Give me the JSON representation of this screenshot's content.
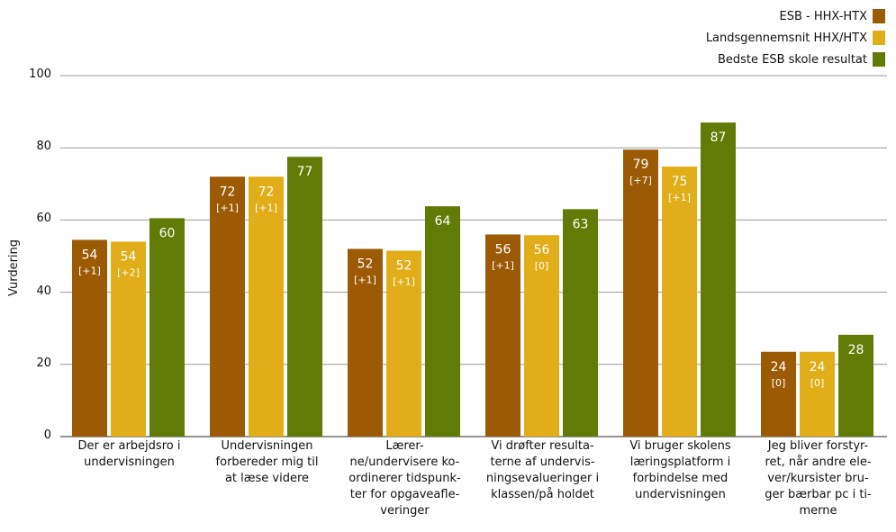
{
  "chart_data": {
    "type": "bar",
    "ylabel": "Vurdering",
    "ylim": [
      0,
      100
    ],
    "yticks": [
      0,
      20,
      40,
      60,
      80,
      100
    ],
    "grid": true,
    "legend_position": "top-right",
    "categories": [
      "Der er arbejdsro i\nundervisningen",
      "Undervisningen\nforbereder mig til\nat læse videre",
      "Lærer-\nne/undervisere ko-\nordinerer tidspunk-\nter for opgaveafle-\nveringer",
      "Vi drøfter resulta-\nterne af undervis-\nningsevalueringer i\nklassen/på holdet",
      "Vi bruger skolens\nlæringsplatform  i\nforbindelse med\nundervisningen",
      "Jeg bliver forstyr-\nret, når andre ele-\nver/kursister bru-\nger bærbar pc i ti-\nmerne"
    ],
    "series": [
      {
        "name": "ESB - HHX-HTX",
        "color": "#9c5a05",
        "values": [
          54,
          72,
          52,
          56,
          79,
          24
        ],
        "changes": [
          "[+1]",
          "[+1]",
          "[+1]",
          "[+1]",
          "[+7]",
          "[0]"
        ]
      },
      {
        "name": "Landsgennemsnit HHX/HTX",
        "color": "#e1ad18",
        "values": [
          54,
          72,
          52,
          56,
          75,
          24
        ],
        "changes": [
          "[+2]",
          "[+1]",
          "[+1]",
          "[0]",
          "[+1]",
          "[0]"
        ]
      },
      {
        "name": "Bedste ESB skole resultat",
        "color": "#627a06",
        "values": [
          60,
          77,
          64,
          63,
          87,
          28
        ],
        "changes": [
          null,
          null,
          null,
          null,
          null,
          null
        ]
      }
    ],
    "bar_heights_exact": [
      [
        54.5,
        72.0,
        52.0,
        56.0,
        79.5,
        23.5
      ],
      [
        54.0,
        72.0,
        51.5,
        55.8,
        74.8,
        23.5
      ],
      [
        60.5,
        77.5,
        63.8,
        63.0,
        87.0,
        28.2
      ]
    ]
  }
}
